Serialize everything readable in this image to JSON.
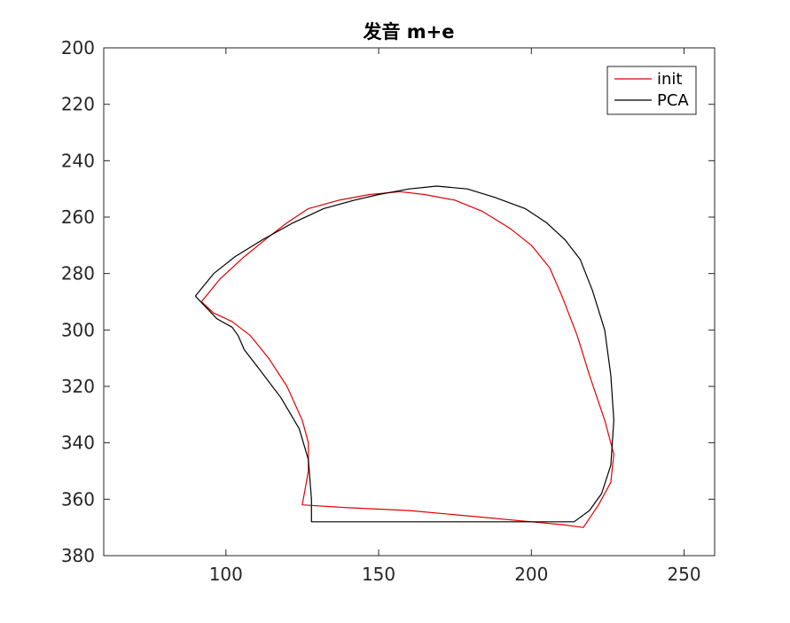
{
  "chart_data": {
    "type": "line",
    "title": "发音 m+e",
    "xlabel": "",
    "ylabel": "",
    "xlim": [
      60,
      260
    ],
    "ylim": [
      200,
      380
    ],
    "y_reversed": true,
    "x_ticks": [
      100,
      150,
      200,
      250
    ],
    "y_ticks": [
      200,
      220,
      240,
      260,
      280,
      300,
      320,
      340,
      360,
      380
    ],
    "grid": false,
    "legend_position": "top-right",
    "series": [
      {
        "name": "init",
        "color": "#e00000",
        "x": [
          92,
          98,
          106,
          114,
          120,
          127,
          137,
          147,
          157,
          165,
          175,
          184,
          193,
          200,
          206,
          210,
          215,
          219,
          224,
          227,
          226,
          222,
          217,
          210,
          200,
          180,
          160,
          140,
          125,
          127,
          127,
          125,
          120,
          114,
          108,
          102,
          96,
          92
        ],
        "y": [
          290,
          282,
          274,
          267,
          262,
          257,
          254,
          252,
          251,
          252,
          254,
          258,
          264,
          270,
          278,
          288,
          302,
          316,
          332,
          344,
          354,
          362,
          370,
          369,
          368,
          366,
          364,
          363,
          362,
          350,
          340,
          332,
          320,
          310,
          302,
          297,
          294,
          290
        ]
      },
      {
        "name": "PCA",
        "color": "#000000",
        "x": [
          90,
          96,
          103,
          112,
          122,
          132,
          142,
          150,
          160,
          169,
          179,
          188,
          198,
          205,
          211,
          216,
          220,
          224,
          226,
          227,
          226,
          223,
          219,
          214,
          200,
          180,
          160,
          140,
          128,
          128,
          127,
          124,
          118,
          111,
          106,
          104,
          102,
          97,
          90
        ],
        "y": [
          288,
          280,
          274,
          268,
          262,
          257,
          254,
          252,
          250,
          249,
          250,
          253,
          257,
          262,
          268,
          275,
          286,
          300,
          316,
          332,
          348,
          358,
          364,
          368,
          368,
          368,
          368,
          368,
          368,
          360,
          346,
          335,
          324,
          314,
          307,
          302,
          299,
          296,
          288
        ]
      }
    ]
  }
}
